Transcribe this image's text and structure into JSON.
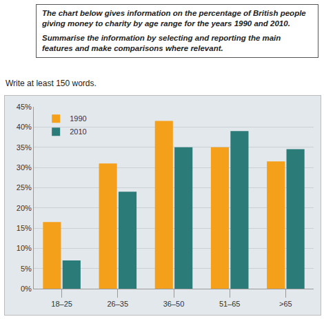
{
  "header": {
    "paragraphs": [
      "The chart below gives information on the percentage of British people giving money to charity by age range for the years 1990 and 2010.",
      "Summarise the information by selecting and reporting the main features and make comparisons where relevant."
    ],
    "instruction": "Write at least 150 words."
  },
  "chart_data": {
    "type": "bar",
    "categories": [
      "18–25",
      "26–35",
      "36–50",
      "51–65",
      ">65"
    ],
    "series": [
      {
        "name": "1990",
        "color": "#f5a01a",
        "values": [
          16.5,
          31,
          41.5,
          35,
          31.5
        ]
      },
      {
        "name": "2010",
        "color": "#2b7b78",
        "values": [
          7,
          24,
          35,
          39,
          34.5
        ]
      }
    ],
    "ylim": [
      0,
      45
    ],
    "yticks": [
      {
        "value": 0,
        "label": "0%"
      },
      {
        "value": 5,
        "label": "5%"
      },
      {
        "value": 10,
        "label": "10%"
      },
      {
        "value": 15,
        "label": "15%"
      },
      {
        "value": 20,
        "label": "20%"
      },
      {
        "value": 25,
        "label": "25%"
      },
      {
        "value": 30,
        "label": "30%"
      },
      {
        "value": 35,
        "label": "35%"
      },
      {
        "value": 40,
        "label": "40%"
      },
      {
        "value": 45,
        "label": "45%"
      }
    ],
    "grid": true,
    "legend": "top-left"
  }
}
